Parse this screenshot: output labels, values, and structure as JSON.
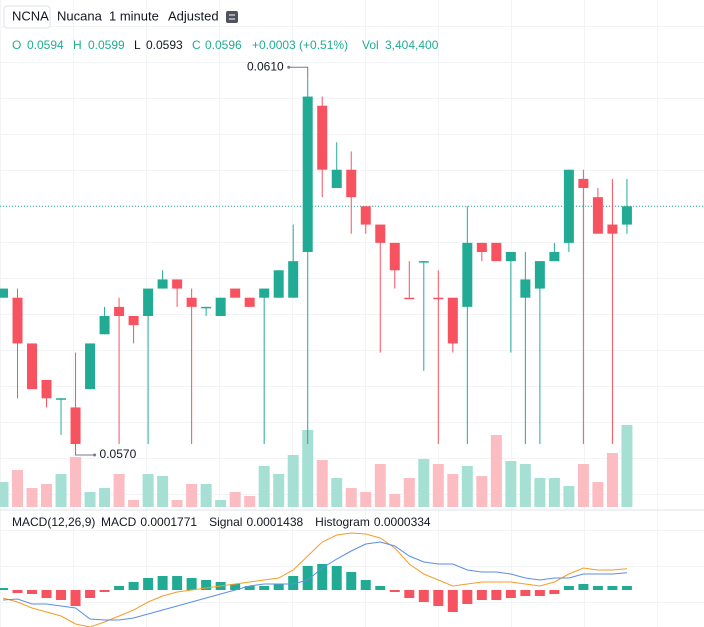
{
  "header": {
    "symbol": "NCNA",
    "name": "Nucana",
    "interval": "1 minute",
    "adjustment": "Adjusted"
  },
  "chart_data": {
    "type": "candlestick",
    "ylim": [
      0.0563,
      0.0612
    ],
    "legend": {
      "labels": [
        "O",
        "H",
        "L",
        "C"
      ],
      "change": "+0.0003 (+0.51%)",
      "volume_label": "Vol",
      "volume_value": "3,404,400"
    },
    "colors": {
      "up": "#22ab94",
      "down": "#f7525f",
      "volume_up": "#a6e0d5",
      "volume_down": "#fbbcc2"
    },
    "candles": {
      "open": [
        0.0586,
        0.0586,
        0.0581,
        0.0577,
        0.0575,
        0.0574,
        0.0576,
        0.0582,
        0.0585,
        0.0584,
        0.0584,
        0.0587,
        0.0588,
        0.0586,
        0.0585,
        0.0584,
        0.0587,
        0.0586,
        0.0586,
        0.0586,
        0.0586,
        0.0591,
        0.0607,
        0.0598,
        0.06,
        0.0596,
        0.0594,
        0.0592,
        0.0586,
        0.059,
        0.0586,
        0.0586,
        0.0585,
        0.0592,
        0.0592,
        0.059,
        0.0586,
        0.0587,
        0.059,
        0.0592,
        0.0599,
        0.0597,
        0.0594,
        0.0594
      ],
      "high": [
        0.0587,
        0.0587,
        0.0581,
        0.0577,
        0.0575,
        0.058,
        0.0581,
        0.0585,
        0.0586,
        0.0584,
        0.0587,
        0.0589,
        0.0588,
        0.0587,
        0.0585,
        0.0586,
        0.0587,
        0.0586,
        0.0587,
        0.0589,
        0.0594,
        0.061,
        0.0608,
        0.0603,
        0.0602,
        0.0596,
        0.0594,
        0.0592,
        0.059,
        0.059,
        0.0589,
        0.0586,
        0.0596,
        0.0592,
        0.0592,
        0.0591,
        0.0591,
        0.059,
        0.0592,
        0.06,
        0.06,
        0.0598,
        0.0599,
        0.0599
      ],
      "low": [
        0.0586,
        0.0575,
        0.0576,
        0.0574,
        0.0571,
        0.057,
        0.0576,
        0.0582,
        0.057,
        0.0581,
        0.057,
        0.0587,
        0.0585,
        0.057,
        0.0584,
        0.0584,
        0.0586,
        0.0585,
        0.057,
        0.0586,
        0.0586,
        0.057,
        0.0597,
        0.0598,
        0.0593,
        0.0593,
        0.058,
        0.0587,
        0.0586,
        0.0578,
        0.057,
        0.058,
        0.057,
        0.059,
        0.059,
        0.058,
        0.057,
        0.057,
        0.059,
        0.0591,
        0.057,
        0.0593,
        0.057,
        0.0593
      ],
      "close": [
        0.0587,
        0.0581,
        0.0576,
        0.0575,
        0.0575,
        0.057,
        0.0581,
        0.0584,
        0.0584,
        0.0583,
        0.0587,
        0.0588,
        0.0587,
        0.0585,
        0.0585,
        0.0586,
        0.0586,
        0.0585,
        0.0587,
        0.0589,
        0.059,
        0.0608,
        0.06,
        0.06,
        0.0597,
        0.0594,
        0.0592,
        0.0589,
        0.0586,
        0.059,
        0.0586,
        0.0581,
        0.0592,
        0.0591,
        0.059,
        0.0591,
        0.0588,
        0.059,
        0.0591,
        0.06,
        0.0598,
        0.0593,
        0.0593,
        0.0596
      ]
    },
    "volume": {
      "values": [
        1040000,
        1536000,
        789000,
        955000,
        1370000,
        2076000,
        623000,
        789000,
        1370000,
        291000,
        1370000,
        1287000,
        291000,
        955000,
        955000,
        291000,
        623000,
        457000,
        1702000,
        1370000,
        2159000,
        3197000,
        1951000,
        1204000,
        789000,
        623000,
        1785000,
        540000,
        1204000,
        1993000,
        1785000,
        1370000,
        1702000,
        1287000,
        2989000,
        1910000,
        1785000,
        1204000,
        1204000,
        872000,
        1785000,
        1038000,
        2242000,
        3404400
      ]
    },
    "max_label": {
      "value": 0.061,
      "label": "0.0610"
    },
    "min_label": {
      "value": 0.057,
      "label": "0.0570"
    },
    "macd": {
      "title": "MACD(12,26,9)",
      "series": [
        {
          "name": "MACD",
          "color": "#f59d2a",
          "type": "line",
          "values": [
            -6.67e-05,
            -0.0001,
            -0.00015,
            -0.0001833,
            -0.0002167,
            -0.0002833,
            -0.0003083,
            -0.0002667,
            -0.0002167,
            -0.0001667,
            -0.0001,
            -5e-05,
            -1.67e-05,
            0,
            1.67e-05,
            3.33e-05,
            5e-05,
            6.67e-05,
            8.33e-05,
            0.0001,
            0.0001667,
            0.0002833,
            0.0004,
            0.0004583,
            0.000475,
            0.0004667,
            0.0004333,
            0.00035,
            0.0002167,
            0.0001333,
            8.33e-05,
            3.33e-05,
            5e-05,
            6.67e-05,
            6.67e-05,
            6.67e-05,
            5e-05,
            3.33e-05,
            6.67e-05,
            0.0001333,
            0.0001833,
            0.0001667,
            0.0001667,
            0.0001771
          ]
        },
        {
          "name": "Signal",
          "color": "#5b8ee6",
          "type": "line",
          "values": [
            -8.33e-05,
            -7.5e-05,
            -0.0001167,
            -0.0001167,
            -0.0001333,
            -0.00015,
            -0.0002417,
            -0.00025,
            -0.00025,
            -0.0002333,
            -0.0002,
            -0.0001667,
            -0.0001333,
            -0.0001,
            -6.67e-05,
            -3.33e-05,
            0,
            3.33e-05,
            5e-05,
            5e-05,
            5e-05,
            8.33e-05,
            0.0001833,
            0.0002583,
            0.000325,
            0.0003833,
            0.0004,
            0.0003667,
            0.0002833,
            0.0002333,
            0.0002167,
            0.0002167,
            0.0001667,
            0.00015,
            0.00015,
            0.0001333,
            0.0001,
            8.33e-05,
            0.0001,
            0.0001,
            0.0001333,
            0.0001333,
            0.0001333,
            0.0001438
          ]
        },
        {
          "name": "Histogram",
          "color": "#22ab94",
          "type": "bar",
          "values": [
            1.67e-05,
            -2.5e-05,
            -3.33e-05,
            -6.67e-05,
            -8.33e-05,
            -0.0001333,
            -6.67e-05,
            -1.67e-05,
            3.33e-05,
            6.67e-05,
            0.0001,
            0.0001167,
            0.0001167,
            0.0001,
            8.33e-05,
            6.67e-05,
            5e-05,
            3.33e-05,
            3.33e-05,
            5e-05,
            0.0001167,
            0.0002,
            0.0002167,
            0.0002,
            0.00015,
            8.33e-05,
            3.33e-05,
            -1.67e-05,
            -6.67e-05,
            -0.0001,
            -0.0001333,
            -0.0001833,
            -0.0001167,
            -8.33e-05,
            -8.33e-05,
            -6.67e-05,
            -5e-05,
            -5e-05,
            -3.33e-05,
            3.33e-05,
            5e-05,
            3.33e-05,
            3.33e-05,
            3.34e-05
          ]
        }
      ]
    }
  }
}
